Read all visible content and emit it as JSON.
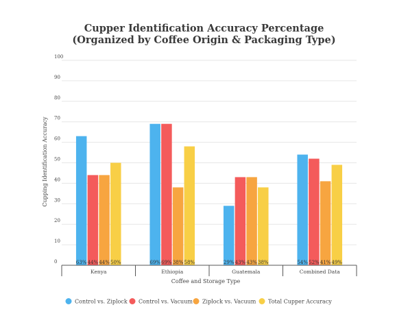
{
  "chart_data": {
    "type": "bar",
    "title": "Cupper Identification Accuracy Percentage",
    "subtitle": "(Organized by Coffee Origin & Packaging Type)",
    "xlabel": "Coffee and Storage Type",
    "ylabel": "Cupping Identification Accuracy",
    "ylim": [
      0,
      100
    ],
    "yticks": [
      "0",
      "10",
      "20",
      "30",
      "40",
      "50",
      "60",
      "70",
      "80",
      "90",
      "100"
    ],
    "categories": [
      "Kenya",
      "Ethiopia",
      "Guatemala",
      "Combined Data"
    ],
    "series": [
      {
        "name": "Control vs. Ziplock",
        "color": "#4db3ee",
        "values": [
          63,
          69,
          29,
          54
        ],
        "labels": [
          "63%",
          "69%",
          "29%",
          "54%"
        ]
      },
      {
        "name": "Control vs. Vacuum",
        "color": "#f45b5b",
        "values": [
          44,
          69,
          43,
          52
        ],
        "labels": [
          "44%",
          "69%",
          "43%",
          "52%"
        ]
      },
      {
        "name": "Ziplock vs. Vacuum",
        "color": "#f7a540",
        "values": [
          44,
          38,
          43,
          41
        ],
        "labels": [
          "44%",
          "38%",
          "43%",
          "41%"
        ]
      },
      {
        "name": "Total Cupper Accuracy",
        "color": "#f8cf46",
        "values": [
          50,
          58,
          38,
          49
        ],
        "labels": [
          "50%",
          "58%",
          "38%",
          "49%"
        ]
      }
    ],
    "grid": true,
    "legend_position": "bottom"
  }
}
